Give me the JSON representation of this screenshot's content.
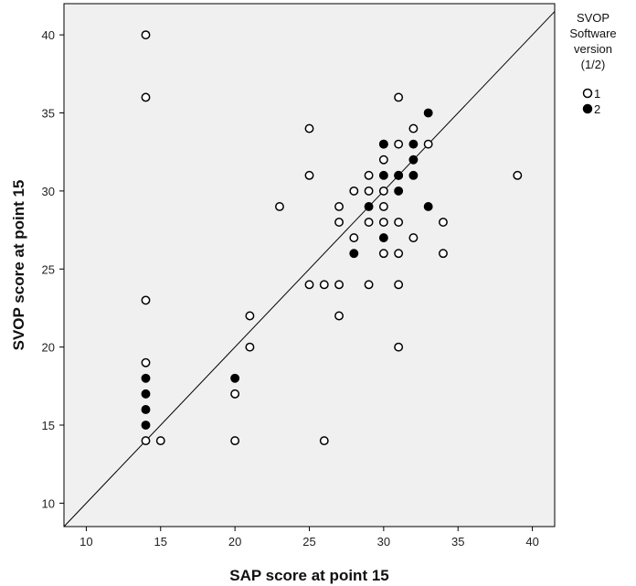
{
  "chart_data": {
    "type": "scatter",
    "xlabel": "SAP score at point 15",
    "ylabel": "SVOP score at point 15",
    "xlim": [
      8.5,
      41.5
    ],
    "ylim": [
      8.5,
      42
    ],
    "xticks": [
      10,
      15,
      20,
      25,
      30,
      35,
      40
    ],
    "yticks": [
      10,
      15,
      20,
      25,
      30,
      35,
      40
    ],
    "grid": false,
    "reference_line": "y = x",
    "legend": {
      "title_lines": [
        "SVOP",
        "Software",
        "version",
        "(1/2)"
      ],
      "placement": "right"
    },
    "colors": {
      "plot_background": "#f0f0f0",
      "marker_edge": "#000000",
      "series_2_fill": "#000000",
      "series_1_fill": "#ffffff"
    },
    "series": [
      {
        "name": "1",
        "marker": "open-circle",
        "points": [
          [
            14,
            40
          ],
          [
            14,
            36
          ],
          [
            14,
            23
          ],
          [
            14,
            19
          ],
          [
            14,
            14
          ],
          [
            15,
            14
          ],
          [
            20,
            17
          ],
          [
            20,
            14
          ],
          [
            21,
            20
          ],
          [
            21,
            22
          ],
          [
            23,
            29
          ],
          [
            25,
            34
          ],
          [
            25,
            31
          ],
          [
            25,
            24
          ],
          [
            26,
            24
          ],
          [
            26,
            14
          ],
          [
            27,
            29
          ],
          [
            27,
            28
          ],
          [
            27,
            24
          ],
          [
            27,
            22
          ],
          [
            28,
            30
          ],
          [
            28,
            27
          ],
          [
            29,
            31
          ],
          [
            29,
            30
          ],
          [
            29,
            28
          ],
          [
            29,
            24
          ],
          [
            30,
            33
          ],
          [
            30,
            32
          ],
          [
            30,
            30
          ],
          [
            30,
            29
          ],
          [
            30,
            28
          ],
          [
            30,
            26
          ],
          [
            31,
            36
          ],
          [
            31,
            33
          ],
          [
            31,
            31
          ],
          [
            31,
            28
          ],
          [
            31,
            26
          ],
          [
            31,
            24
          ],
          [
            31,
            20
          ],
          [
            32,
            34
          ],
          [
            32,
            27
          ],
          [
            33,
            33
          ],
          [
            34,
            28
          ],
          [
            34,
            26
          ],
          [
            39,
            31
          ]
        ]
      },
      {
        "name": "2",
        "marker": "filled-circle",
        "points": [
          [
            14,
            18
          ],
          [
            14,
            17
          ],
          [
            14,
            16
          ],
          [
            14,
            15
          ],
          [
            20,
            18
          ],
          [
            28,
            26
          ],
          [
            29,
            29
          ],
          [
            30,
            33
          ],
          [
            30,
            31
          ],
          [
            30,
            27
          ],
          [
            31,
            31
          ],
          [
            31,
            30
          ],
          [
            32,
            33
          ],
          [
            32,
            32
          ],
          [
            32,
            31
          ],
          [
            33,
            35
          ],
          [
            33,
            29
          ]
        ]
      }
    ]
  }
}
